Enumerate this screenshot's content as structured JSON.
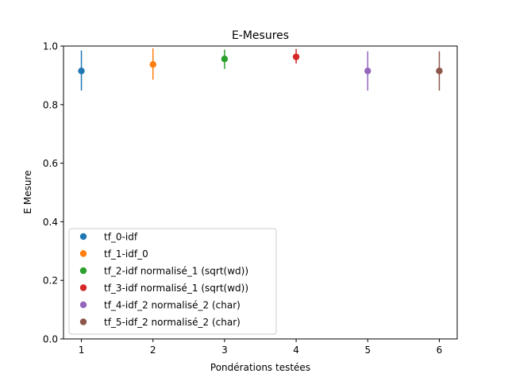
{
  "chart_data": {
    "type": "scatter",
    "title": "E-Mesures",
    "xlabel": "Pondérations testées",
    "ylabel": "E Mesure",
    "xlim": [
      0.75,
      6.25
    ],
    "ylim": [
      0.0,
      1.0
    ],
    "xticks": [
      "1",
      "2",
      "3",
      "4",
      "5",
      "6"
    ],
    "yticks": [
      "0.0",
      "0.2",
      "0.4",
      "0.6",
      "0.8",
      "1.0"
    ],
    "grid": false,
    "legend_position": "lower-left",
    "series": [
      {
        "name": "tf_0-idf",
        "color": "#1f77b4",
        "x": 1,
        "y": 0.915,
        "err_low": 0.848,
        "err_high": 0.985
      },
      {
        "name": "tf_1-idf_0",
        "color": "#ff7f0e",
        "x": 2,
        "y": 0.937,
        "err_low": 0.885,
        "err_high": 0.992
      },
      {
        "name": "tf_2-idf normalisé_1 (sqrt(wd))",
        "color": "#2ca02c",
        "x": 3,
        "y": 0.956,
        "err_low": 0.922,
        "err_high": 0.988
      },
      {
        "name": "tf_3-idf normalisé_1 (sqrt(wd))",
        "color": "#d62728",
        "x": 4,
        "y": 0.963,
        "err_low": 0.94,
        "err_high": 0.99
      },
      {
        "name": "tf_4-idf_2 normalisé_2 (char)",
        "color": "#9467bd",
        "x": 5,
        "y": 0.915,
        "err_low": 0.848,
        "err_high": 0.982
      },
      {
        "name": "tf_5-idf_2 normalisé_2 (char)",
        "color": "#8c564b",
        "x": 6,
        "y": 0.915,
        "err_low": 0.848,
        "err_high": 0.982
      }
    ]
  }
}
